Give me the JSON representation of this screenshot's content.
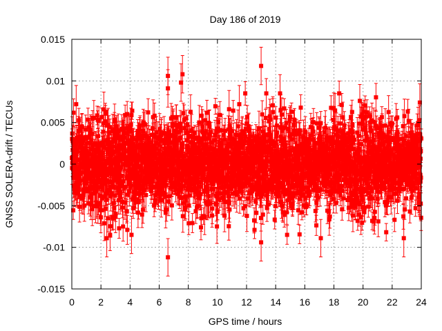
{
  "chart_data": {
    "type": "scatter",
    "title": "Day 186 of 2019",
    "xlabel": "GPS time / hours",
    "ylabel": "GNSS SOLERA-drift / TECUs",
    "xlim": [
      0,
      24
    ],
    "ylim": [
      -0.015,
      0.015
    ],
    "xticks": [
      0,
      2,
      4,
      6,
      8,
      10,
      12,
      14,
      16,
      18,
      20,
      22,
      24
    ],
    "yticks": [
      -0.015,
      -0.01,
      -0.005,
      0,
      0.005,
      0.01,
      0.015
    ],
    "ytick_labels": [
      "-0.015",
      "-0.01",
      "-0.005",
      "0",
      "0.005",
      "0.01",
      "0.015"
    ],
    "grid": true,
    "series_color": "#ff0000",
    "marker": "square",
    "error_bars": true,
    "n_points_approx": 2800,
    "noise_std_approx": 0.0026,
    "typical_error_approx": 0.0015,
    "outliers": [
      {
        "x": 6.6,
        "y": 0.0106
      },
      {
        "x": 6.6,
        "y": 0.0091
      },
      {
        "x": 6.6,
        "y": -0.0112
      },
      {
        "x": 7.6,
        "y": 0.0108
      },
      {
        "x": 7.5,
        "y": 0.0098
      },
      {
        "x": 13.0,
        "y": 0.0118
      },
      {
        "x": 13.0,
        "y": -0.0094
      },
      {
        "x": 14.3,
        "y": 0.0085
      },
      {
        "x": 0.3,
        "y": 0.0072
      },
      {
        "x": 23.9,
        "y": 0.0074
      },
      {
        "x": 4.1,
        "y": -0.0085
      },
      {
        "x": 17.1,
        "y": -0.0089
      },
      {
        "x": 2.4,
        "y": -0.0089
      },
      {
        "x": 22.8,
        "y": -0.0089
      },
      {
        "x": 11.5,
        "y": 0.0072
      },
      {
        "x": 10.8,
        "y": 0.0066
      }
    ]
  }
}
